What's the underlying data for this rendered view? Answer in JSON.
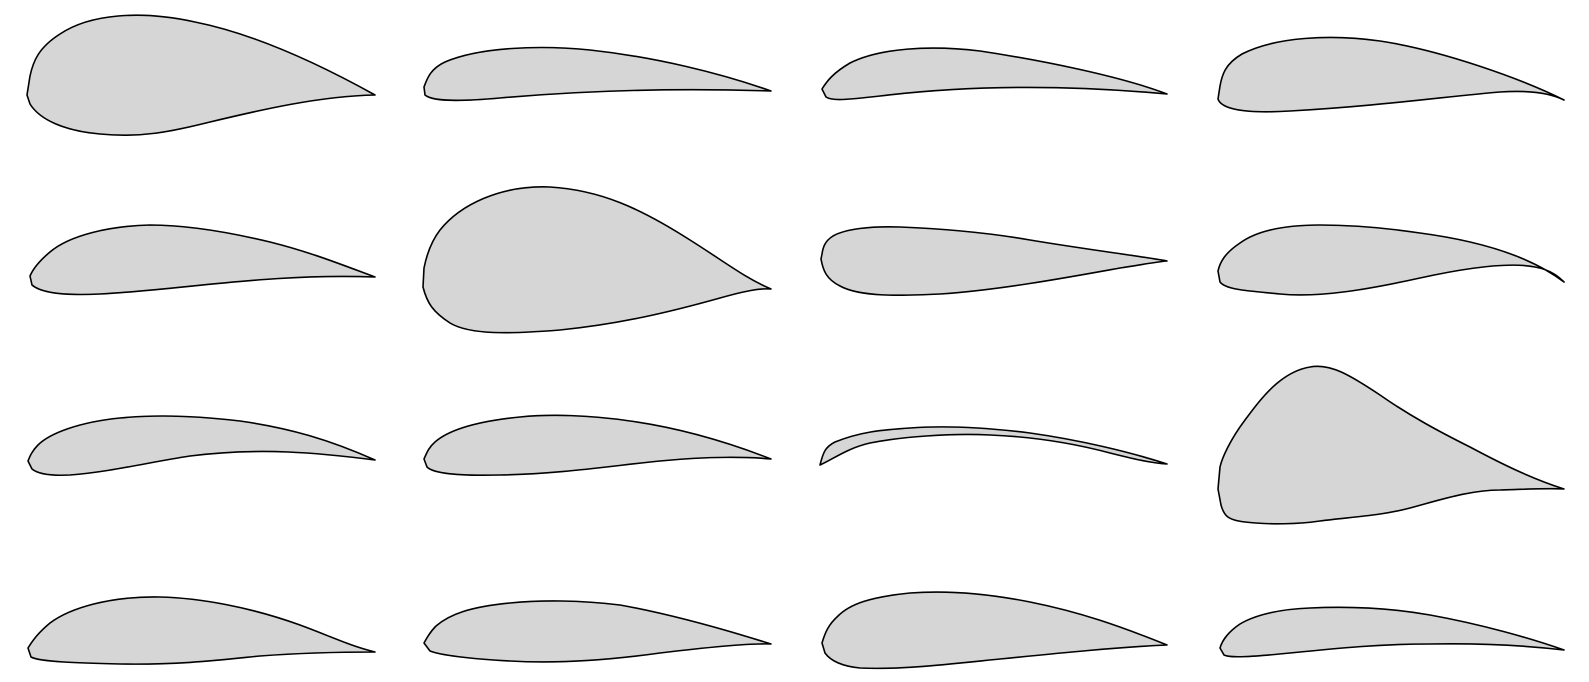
{
  "figure": {
    "fill_color": "#d6d6d6",
    "stroke_color": "#000000",
    "background_color": "#ffffff",
    "rows": 4,
    "columns": 4,
    "airfoils": [
      {
        "id": "r1c1"
      },
      {
        "id": "r1c2"
      },
      {
        "id": "r1c3"
      },
      {
        "id": "r1c4"
      },
      {
        "id": "r2c1"
      },
      {
        "id": "r2c2"
      },
      {
        "id": "r2c3"
      },
      {
        "id": "r2c4"
      },
      {
        "id": "r3c1"
      },
      {
        "id": "r3c2"
      },
      {
        "id": "r3c3"
      },
      {
        "id": "r3c4"
      },
      {
        "id": "r4c1"
      },
      {
        "id": "r4c2"
      },
      {
        "id": "r4c3"
      },
      {
        "id": "r4c4"
      }
    ]
  }
}
